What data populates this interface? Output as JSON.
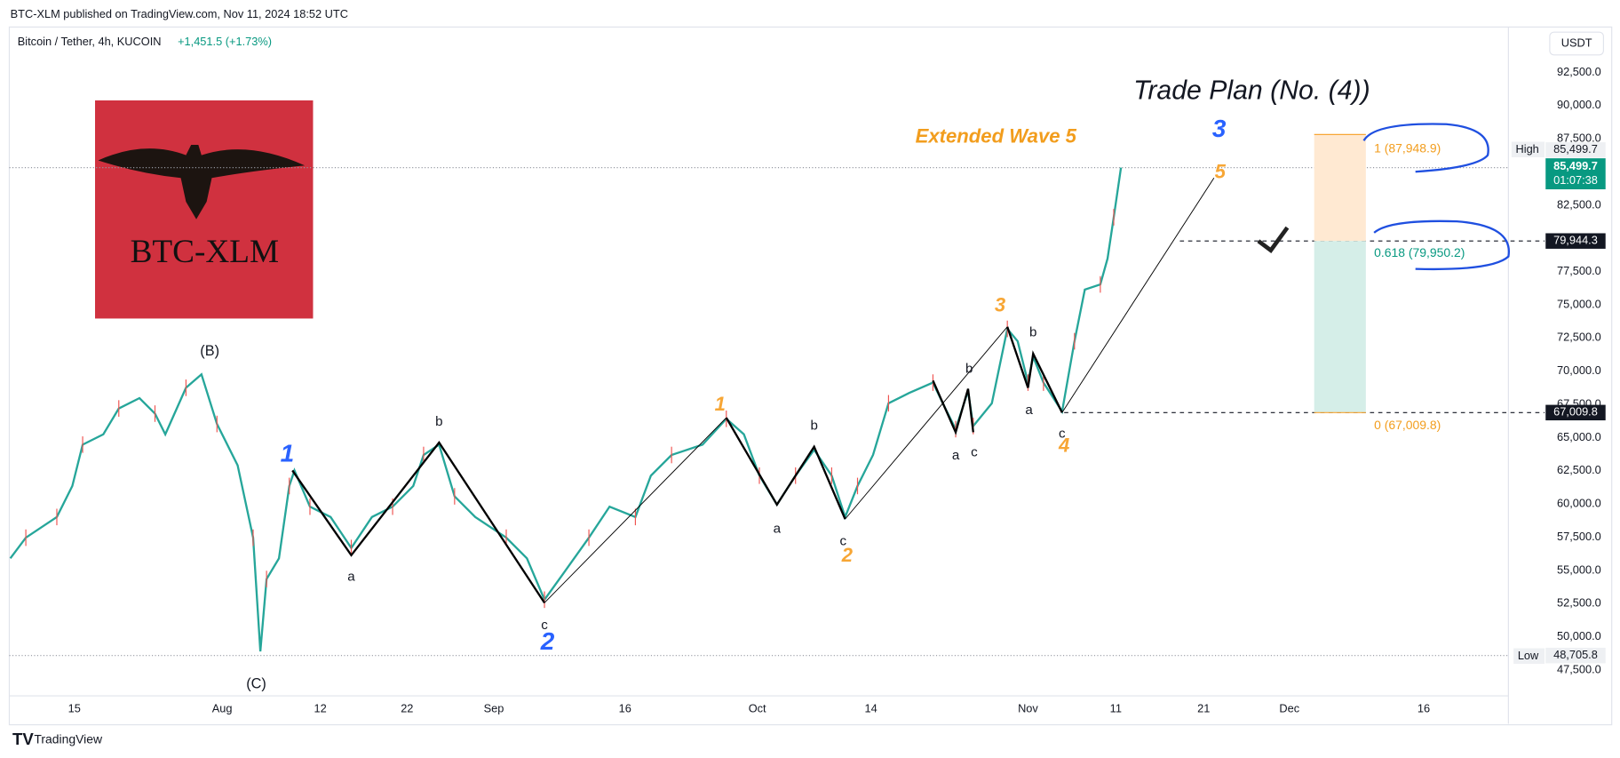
{
  "header": {
    "published": "BTC-XLM published on TradingView.com, Nov 11, 2024 18:52 UTC",
    "symbol": "Bitcoin / Tether, 4h, KUCOIN",
    "change": "+1,451.5 (+1.73%)",
    "currency": "USDT"
  },
  "logo": {
    "text": "BTC-XLM"
  },
  "price_axis": {
    "ticks": [
      {
        "value": 92500,
        "label": "92,500.0"
      },
      {
        "value": 90000,
        "label": "90,000.0"
      },
      {
        "value": 87500,
        "label": "87,500.0"
      },
      {
        "value": 82500,
        "label": "82,500.0"
      },
      {
        "value": 77500,
        "label": "77,500.0"
      },
      {
        "value": 75000,
        "label": "75,000.0"
      },
      {
        "value": 72500,
        "label": "72,500.0"
      },
      {
        "value": 70000,
        "label": "70,000.0"
      },
      {
        "value": 67500,
        "label": "67,500.0"
      },
      {
        "value": 65000,
        "label": "65,000.0"
      },
      {
        "value": 62500,
        "label": "62,500.0"
      },
      {
        "value": 60000,
        "label": "60,000.0"
      },
      {
        "value": 57500,
        "label": "57,500.0"
      },
      {
        "value": 55000,
        "label": "55,000.0"
      },
      {
        "value": 52500,
        "label": "52,500.0"
      },
      {
        "value": 50000,
        "label": "50,000.0"
      },
      {
        "value": 47500,
        "label": "47,500.0"
      }
    ]
  },
  "markers": {
    "high": {
      "label": "High",
      "price": "85,499.7"
    },
    "last": {
      "price": "85,499.7",
      "countdown": "01:07:38"
    },
    "levels": [
      "79,944.3",
      "67,009.8"
    ],
    "low": {
      "label": "Low",
      "price": "48,705.8"
    }
  },
  "time_axis": {
    "labels": [
      "15",
      "Aug",
      "12",
      "22",
      "Sep",
      "16",
      "Oct",
      "14",
      "Nov",
      "11",
      "21",
      "Dec",
      "16"
    ]
  },
  "annotations": {
    "title": "Trade Plan (No. (4))",
    "extended": "Extended Wave 5",
    "fib": [
      "1 (87,948.9)",
      "0.618 (79,950.2)",
      "0 (67,009.8)"
    ]
  },
  "wave_labels": [
    "(B)",
    "(C)",
    "1",
    "a",
    "b",
    "c",
    "2",
    "1",
    "b",
    "a",
    "c",
    "2",
    "b",
    "a",
    "c",
    "3",
    "b",
    "a",
    "c",
    "4",
    "3",
    "5"
  ],
  "footer": {
    "brand": "TradingView"
  }
}
